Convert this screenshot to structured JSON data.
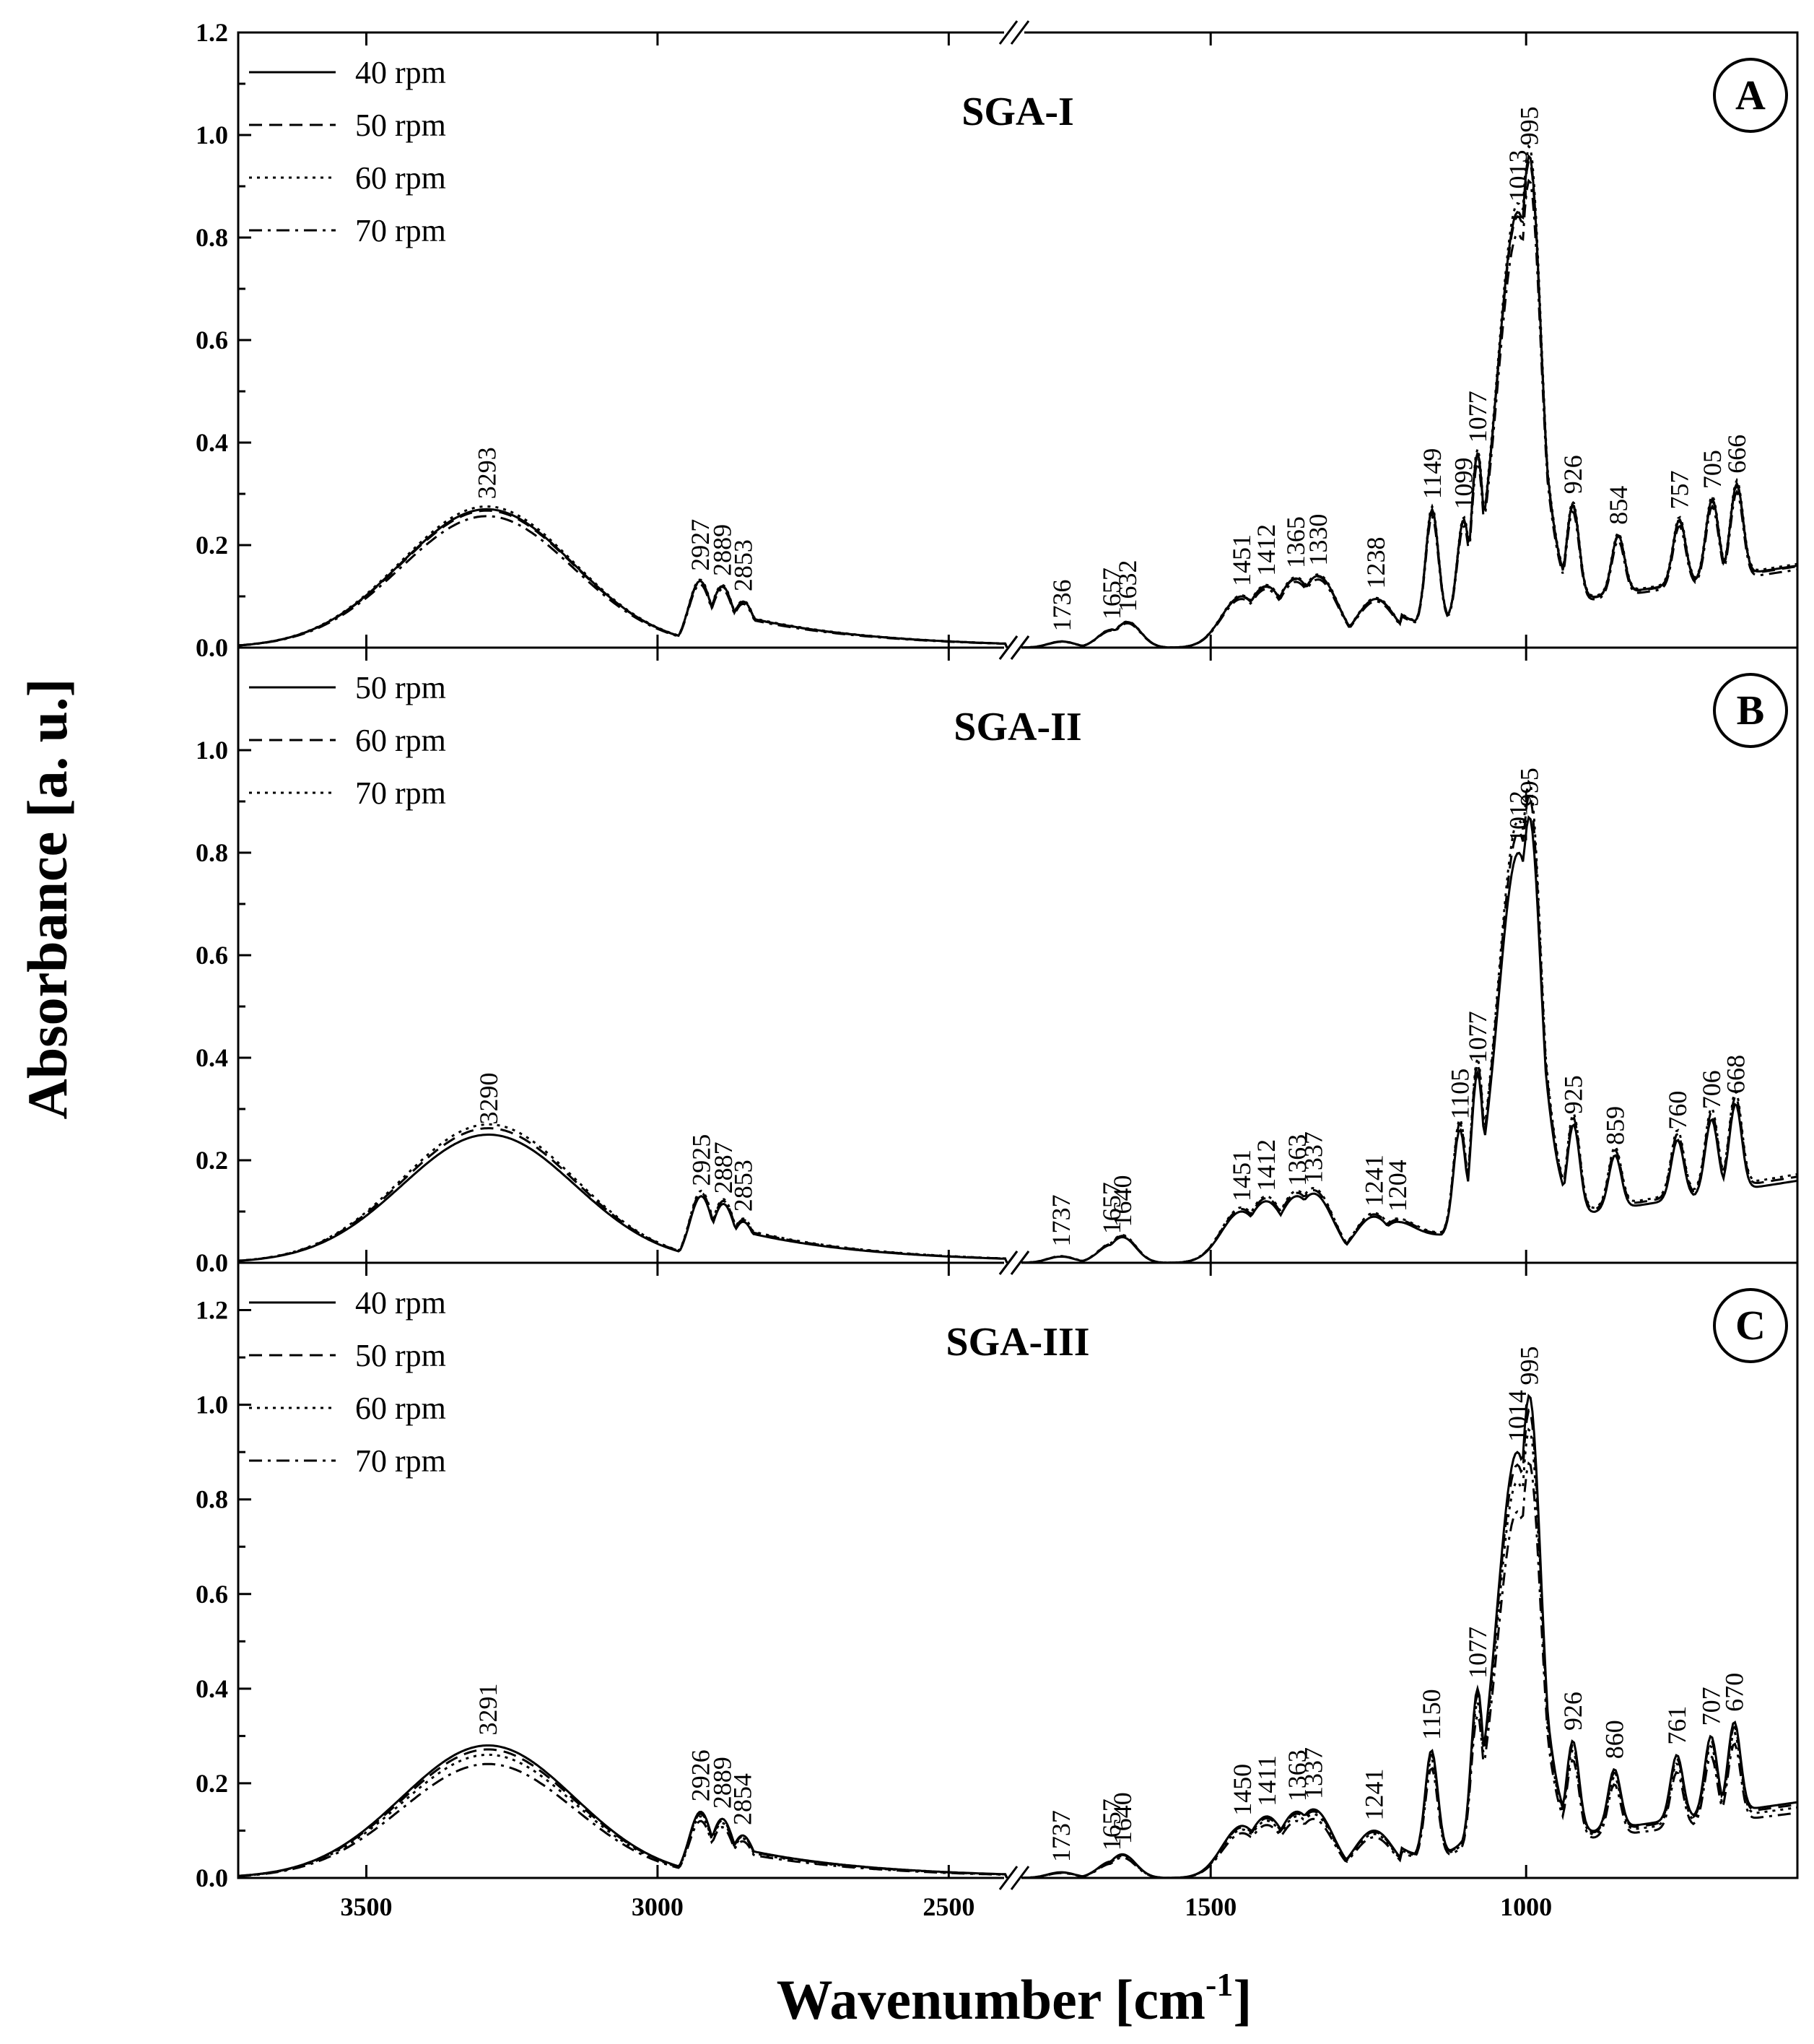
{
  "chart_data": {
    "type": "line",
    "xlabel": "Wavenumber [cm",
    "xlabel_superscript": "-1",
    "xlabel_suffix": "]",
    "ylabel": "Absorbance [a. u.]",
    "x_segments": [
      [
        3720,
        2400
      ],
      [
        1800,
        570
      ]
    ],
    "x_break": "//",
    "x_ticks": [
      3500,
      3000,
      2500,
      1500,
      1000
    ],
    "panels": [
      {
        "letter": "A",
        "title": "SGA-I",
        "ylim": [
          0.0,
          1.2
        ],
        "y_ticks": [
          0.0,
          0.2,
          0.4,
          0.6,
          0.8,
          1.0,
          1.2
        ],
        "y_tick_labels": [
          "0.0",
          "0.2",
          "0.4",
          "0.6",
          "0.8",
          "1.0",
          "1.2"
        ],
        "legend": [
          "40 rpm",
          "50 rpm",
          "60 rpm",
          "70 rpm"
        ],
        "styles": [
          "solid",
          "dashed",
          "dotted",
          "dashdot"
        ],
        "scales": [
          1.0,
          0.99,
          1.02,
          0.95
        ],
        "peaks": [
          {
            "x": 3293,
            "y": 0.27
          },
          {
            "x": 2927,
            "y": 0.13
          },
          {
            "x": 2889,
            "y": 0.12
          },
          {
            "x": 2853,
            "y": 0.09
          },
          {
            "x": 1736,
            "y": 0.012
          },
          {
            "x": 1657,
            "y": 0.035
          },
          {
            "x": 1632,
            "y": 0.05
          },
          {
            "x": 1451,
            "y": 0.1
          },
          {
            "x": 1412,
            "y": 0.12
          },
          {
            "x": 1365,
            "y": 0.135
          },
          {
            "x": 1330,
            "y": 0.14
          },
          {
            "x": 1238,
            "y": 0.095
          },
          {
            "x": 1149,
            "y": 0.27
          },
          {
            "x": 1099,
            "y": 0.25
          },
          {
            "x": 1077,
            "y": 0.38
          },
          {
            "x": 1013,
            "y": 0.85
          },
          {
            "x": 995,
            "y": 0.96
          },
          {
            "x": 926,
            "y": 0.28
          },
          {
            "x": 854,
            "y": 0.22
          },
          {
            "x": 757,
            "y": 0.25
          },
          {
            "x": 705,
            "y": 0.29
          },
          {
            "x": 666,
            "y": 0.32
          }
        ]
      },
      {
        "letter": "B",
        "title": "SGA-II",
        "ylim": [
          0.0,
          1.2
        ],
        "y_ticks": [
          0.0,
          0.2,
          0.4,
          0.6,
          0.8,
          1.0
        ],
        "y_tick_labels": [
          "0.0",
          "0.2",
          "0.4",
          "0.6",
          "0.8",
          "1.0"
        ],
        "legend": [
          "50 rpm",
          "60 rpm",
          "70 rpm"
        ],
        "styles": [
          "solid",
          "dashed",
          "dotted"
        ],
        "scales": [
          1.0,
          1.05,
          1.08
        ],
        "peaks": [
          {
            "x": 3290,
            "y": 0.25
          },
          {
            "x": 2925,
            "y": 0.13
          },
          {
            "x": 2887,
            "y": 0.115
          },
          {
            "x": 2853,
            "y": 0.08
          },
          {
            "x": 1737,
            "y": 0.012
          },
          {
            "x": 1657,
            "y": 0.035
          },
          {
            "x": 1640,
            "y": 0.05
          },
          {
            "x": 1451,
            "y": 0.1
          },
          {
            "x": 1412,
            "y": 0.12
          },
          {
            "x": 1363,
            "y": 0.13
          },
          {
            "x": 1337,
            "y": 0.135
          },
          {
            "x": 1241,
            "y": 0.09
          },
          {
            "x": 1204,
            "y": 0.08
          },
          {
            "x": 1105,
            "y": 0.26
          },
          {
            "x": 1077,
            "y": 0.37
          },
          {
            "x": 1012,
            "y": 0.8
          },
          {
            "x": 995,
            "y": 0.87
          },
          {
            "x": 925,
            "y": 0.27
          },
          {
            "x": 859,
            "y": 0.21
          },
          {
            "x": 760,
            "y": 0.24
          },
          {
            "x": 706,
            "y": 0.28
          },
          {
            "x": 668,
            "y": 0.31
          }
        ]
      },
      {
        "letter": "C",
        "title": "SGA-III",
        "ylim": [
          0.0,
          1.3
        ],
        "y_ticks": [
          0.0,
          0.2,
          0.4,
          0.6,
          0.8,
          1.0,
          1.2
        ],
        "y_tick_labels": [
          "0.0",
          "0.2",
          "0.4",
          "0.6",
          "0.8",
          "1.0",
          "1.2"
        ],
        "legend": [
          "40 rpm",
          "50 rpm",
          "60 rpm",
          "70 rpm"
        ],
        "styles": [
          "solid",
          "dashed",
          "dotted",
          "dashdot"
        ],
        "scales": [
          1.0,
          0.97,
          0.93,
          0.86
        ],
        "peaks": [
          {
            "x": 3291,
            "y": 0.28
          },
          {
            "x": 2926,
            "y": 0.14
          },
          {
            "x": 2889,
            "y": 0.125
          },
          {
            "x": 2854,
            "y": 0.09
          },
          {
            "x": 1737,
            "y": 0.012
          },
          {
            "x": 1657,
            "y": 0.035
          },
          {
            "x": 1640,
            "y": 0.05
          },
          {
            "x": 1450,
            "y": 0.11
          },
          {
            "x": 1411,
            "y": 0.13
          },
          {
            "x": 1363,
            "y": 0.14
          },
          {
            "x": 1337,
            "y": 0.145
          },
          {
            "x": 1241,
            "y": 0.1
          },
          {
            "x": 1150,
            "y": 0.27
          },
          {
            "x": 1077,
            "y": 0.4
          },
          {
            "x": 1014,
            "y": 0.9
          },
          {
            "x": 995,
            "y": 1.02
          },
          {
            "x": 926,
            "y": 0.29
          },
          {
            "x": 860,
            "y": 0.23
          },
          {
            "x": 761,
            "y": 0.26
          },
          {
            "x": 707,
            "y": 0.3
          },
          {
            "x": 670,
            "y": 0.33
          }
        ]
      }
    ]
  }
}
